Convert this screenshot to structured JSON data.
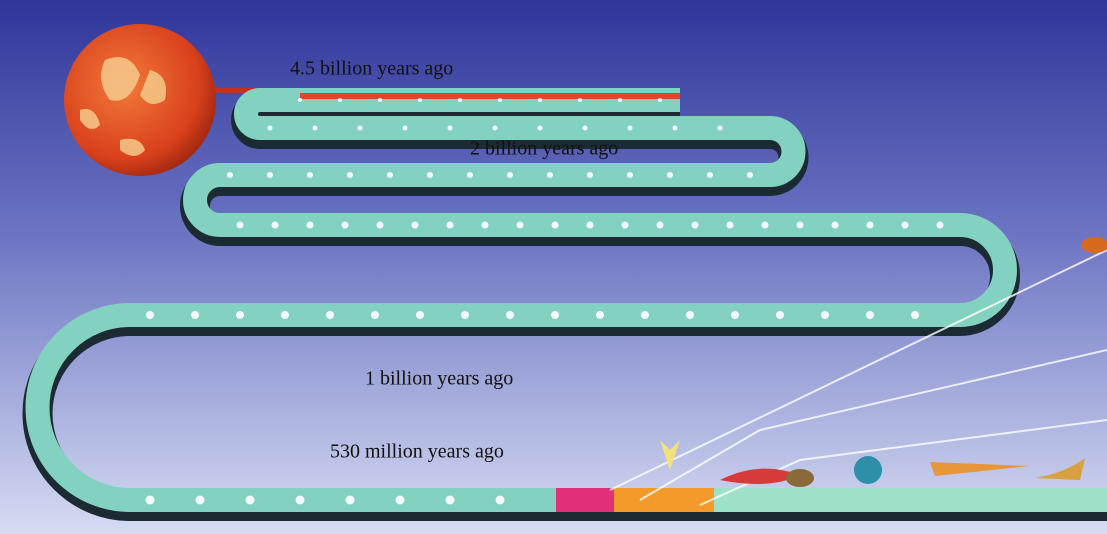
{
  "labels": [
    "4.5 billion years ago",
    "2 billion years ago",
    "1 billion years ago",
    "530 million years ago"
  ]
}
